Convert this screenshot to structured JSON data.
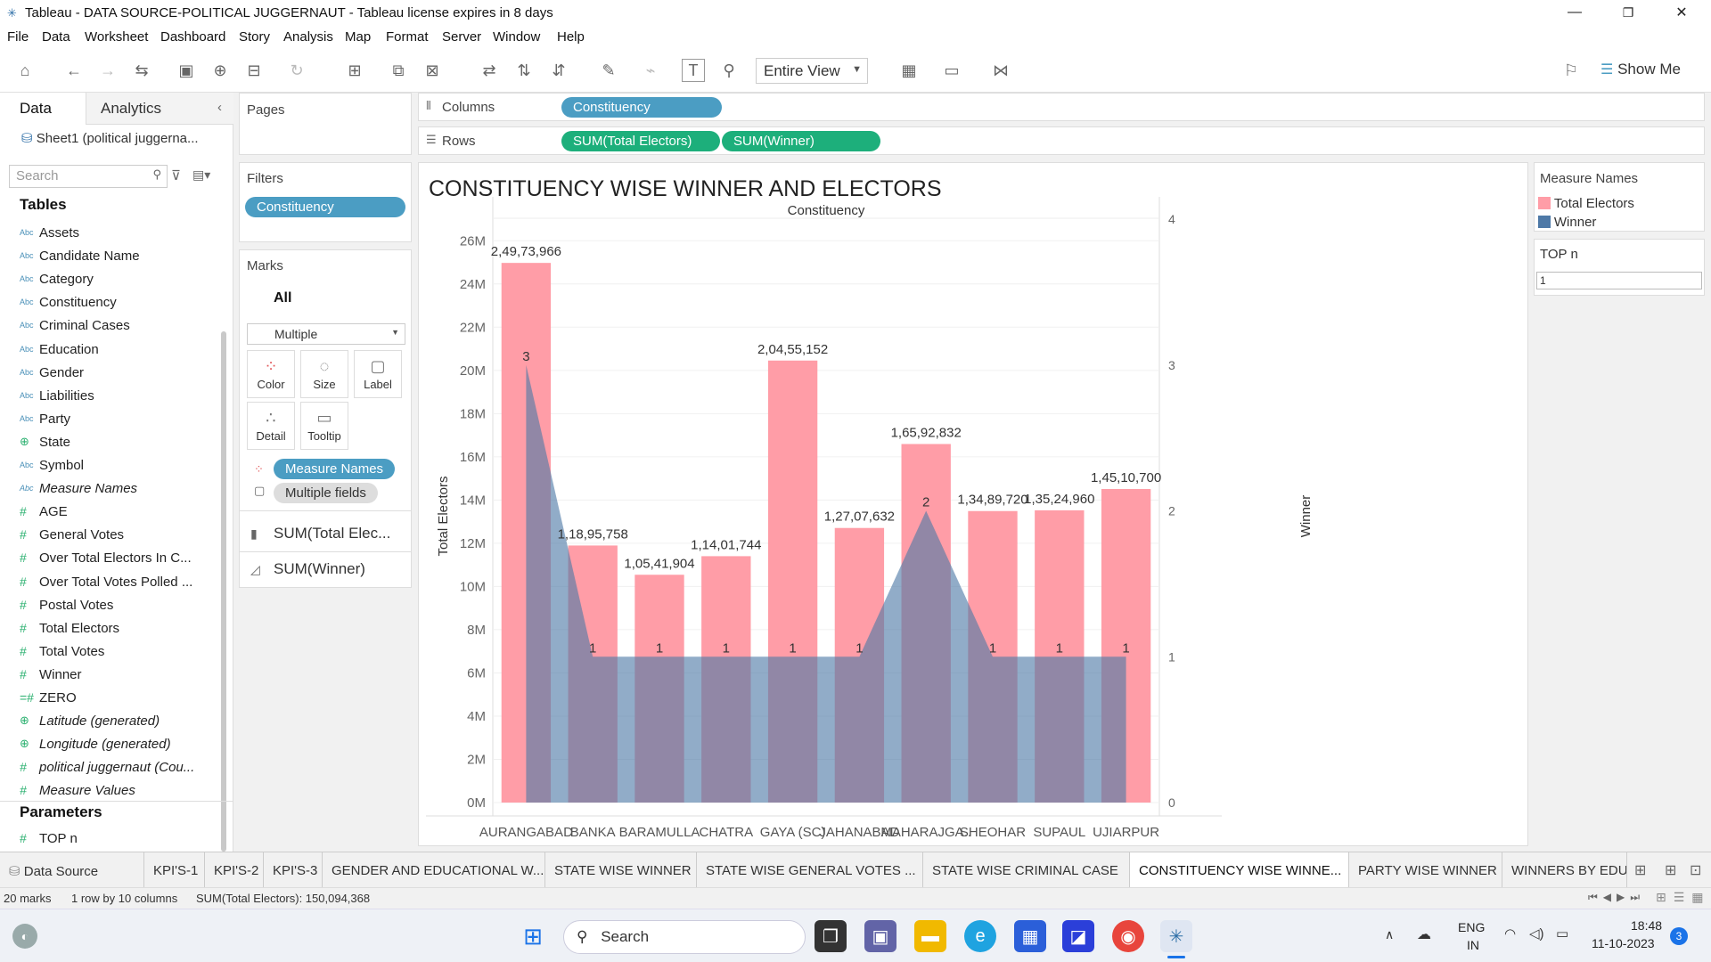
{
  "window": {
    "title": "Tableau - DATA SOURCE-POLITICAL JUGGERNAUT - Tableau license expires in 8 days",
    "minimize": "—",
    "restore": "❐",
    "close": "✕"
  },
  "menu": [
    "File",
    "Data",
    "Worksheet",
    "Dashboard",
    "Story",
    "Analysis",
    "Map",
    "Format",
    "Server",
    "Window",
    "Help"
  ],
  "toolbar": {
    "fit": "Entire View",
    "show_me": "Show Me"
  },
  "left_pane": {
    "tab_data": "Data",
    "tab_analytics": "Analytics",
    "datasource": "Sheet1 (political juggerna...",
    "search_placeholder": "Search",
    "tables_heading": "Tables",
    "fields": [
      {
        "name": "Assets",
        "type": "Abc",
        "italic": false
      },
      {
        "name": "Candidate Name",
        "type": "Abc",
        "italic": false
      },
      {
        "name": "Category",
        "type": "Abc",
        "italic": false
      },
      {
        "name": "Constituency",
        "type": "Abc",
        "italic": false
      },
      {
        "name": "Criminal Cases",
        "type": "Abc",
        "italic": false
      },
      {
        "name": "Education",
        "type": "Abc",
        "italic": false
      },
      {
        "name": "Gender",
        "type": "Abc",
        "italic": false
      },
      {
        "name": "Liabilities",
        "type": "Abc",
        "italic": false
      },
      {
        "name": "Party",
        "type": "Abc",
        "italic": false
      },
      {
        "name": "State",
        "type": "geo",
        "italic": false
      },
      {
        "name": "Symbol",
        "type": "Abc",
        "italic": false
      },
      {
        "name": "Measure Names",
        "type": "Abc",
        "italic": true
      },
      {
        "name": "AGE",
        "type": "#",
        "italic": false
      },
      {
        "name": "General Votes",
        "type": "#",
        "italic": false
      },
      {
        "name": "Over Total Electors  In C...",
        "type": "#",
        "italic": false
      },
      {
        "name": "Over Total Votes Polled  ...",
        "type": "#",
        "italic": false
      },
      {
        "name": "Postal Votes",
        "type": "#",
        "italic": false
      },
      {
        "name": "Total Electors",
        "type": "#",
        "italic": false
      },
      {
        "name": "Total Votes",
        "type": "#",
        "italic": false
      },
      {
        "name": "Winner",
        "type": "#",
        "italic": false
      },
      {
        "name": "ZERO",
        "type": "=#",
        "italic": false
      },
      {
        "name": "Latitude (generated)",
        "type": "geo",
        "italic": true
      },
      {
        "name": "Longitude (generated)",
        "type": "geo",
        "italic": true
      },
      {
        "name": "political juggernaut (Cou...",
        "type": "#",
        "italic": true
      },
      {
        "name": "Measure Values",
        "type": "#",
        "italic": true
      }
    ],
    "parameters_heading": "Parameters",
    "parameters": [
      {
        "name": "TOP n",
        "type": "#"
      }
    ]
  },
  "pages": {
    "label": "Pages"
  },
  "filters": {
    "label": "Filters",
    "items": [
      "Constituency"
    ]
  },
  "marks": {
    "label": "Marks",
    "all": "All",
    "type": "Multiple",
    "buttons": [
      "Color",
      "Size",
      "Label",
      "Detail",
      "Tooltip"
    ],
    "pills": [
      "Measure Names",
      "Multiple fields"
    ],
    "measures": [
      "SUM(Total Elec...",
      "SUM(Winner)"
    ]
  },
  "shelves": {
    "columns_label": "Columns",
    "rows_label": "Rows",
    "columns": [
      "Constituency"
    ],
    "rows": [
      "SUM(Total Electors)",
      "SUM(Winner)"
    ]
  },
  "legend": {
    "title": "Measure Names",
    "items": [
      {
        "name": "Total Electors",
        "color": "#ff9da7"
      },
      {
        "name": "Winner",
        "color": "#4e79a7"
      }
    ]
  },
  "topn": {
    "title": "TOP n",
    "value": "1"
  },
  "chart_data": {
    "type": "bar",
    "title": "CONSTITUENCY WISE WINNER AND ELECTORS",
    "header": "Constituency",
    "categories": [
      "AURANGABAD",
      "BANKA",
      "BARAMULLA",
      "CHATRA",
      "GAYA (SC)",
      "JAHANABAD",
      "MAHARAJGA..",
      "SHEOHAR",
      "SUPAUL",
      "UJIARPUR"
    ],
    "series": [
      {
        "name": "Total Electors",
        "mark": "bar",
        "axis": "left",
        "color": "#ff9da7",
        "values": [
          24973966,
          11895758,
          10541904,
          11401744,
          20455152,
          12707632,
          16592832,
          13489720,
          13524960,
          14510700
        ],
        "labels": [
          "2,49,73,966",
          "1,18,95,758",
          "1,05,41,904",
          "1,14,01,744",
          "2,04,55,152",
          "1,27,07,632",
          "1,65,92,832",
          "1,34,89,720",
          "1,35,24,960",
          "1,45,10,700"
        ]
      },
      {
        "name": "Winner",
        "mark": "area",
        "axis": "right",
        "color": "#4e79a7",
        "values": [
          3,
          1,
          1,
          1,
          1,
          1,
          2,
          1,
          1,
          1
        ],
        "labels": [
          "3",
          "1",
          "1",
          "1",
          "1",
          "1",
          "2",
          "1",
          "1",
          "1"
        ]
      }
    ],
    "ylabel": "Total Electors",
    "y2label": "Winner",
    "ylim": [
      0,
      27000000
    ],
    "y2lim": [
      0,
      4
    ],
    "yticks": [
      "0M",
      "2M",
      "4M",
      "6M",
      "8M",
      "10M",
      "12M",
      "14M",
      "16M",
      "18M",
      "20M",
      "22M",
      "24M",
      "26M"
    ],
    "y2ticks": [
      "0",
      "1",
      "2",
      "3",
      "4"
    ]
  },
  "sheet_tabs": {
    "datasource": "Data Source",
    "tabs": [
      "KPI'S-1",
      "KPI'S-2",
      "KPI'S-3",
      "GENDER AND EDUCATIONAL W...",
      "STATE WISE WINNER",
      "STATE WISE GENERAL VOTES ...",
      "STATE WISE CRIMINAL CASE",
      "CONSTITUENCY WISE WINNE...",
      "PARTY WISE WINNER",
      "WINNERS BY EDUC"
    ],
    "active_index": 7
  },
  "status": {
    "marks": "20 marks",
    "dims": "1 row by 10 columns",
    "sum": "SUM(Total Electors): 150,094,368"
  },
  "taskbar": {
    "search": "Search",
    "lang1": "ENG",
    "lang2": "IN",
    "time": "18:48",
    "date": "11-10-2023",
    "notif": "3"
  }
}
